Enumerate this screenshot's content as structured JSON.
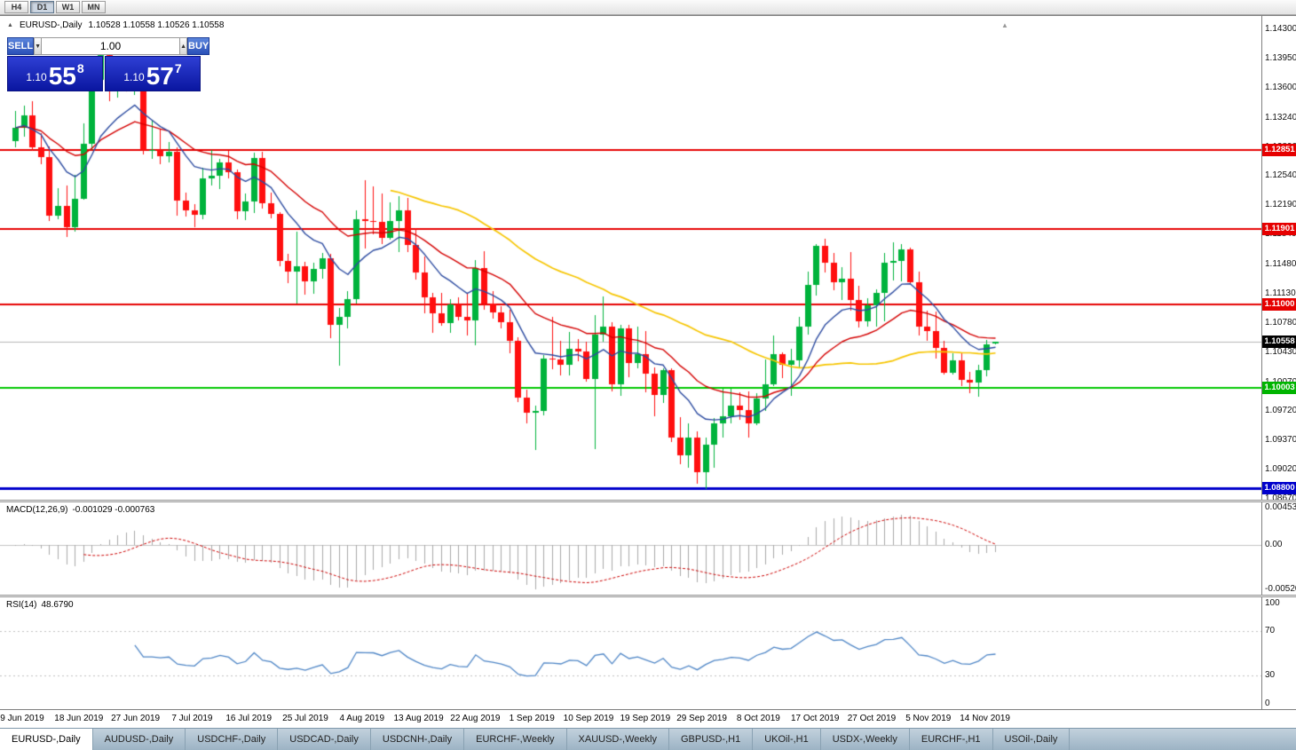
{
  "toolbar": {
    "timeframes": [
      {
        "label": "H4",
        "active": false
      },
      {
        "label": "D1",
        "active": true
      },
      {
        "label": "W1",
        "active": false
      },
      {
        "label": "MN",
        "active": false
      }
    ]
  },
  "icons": {
    "collapse": "▲",
    "volume_down": "▼",
    "volume_up": "▲",
    "shift_marker": "▲"
  },
  "chart": {
    "title_symbol": "EURUSD-,Daily",
    "title_ohlc": "1.10528 1.10558 1.10526 1.10558"
  },
  "trade_panel": {
    "sell_label": "SELL",
    "buy_label": "BUY",
    "volume": "1.00",
    "sell_price": {
      "prefix": "1.10",
      "big": "55",
      "sup": "8"
    },
    "buy_price": {
      "prefix": "1.10",
      "big": "57",
      "sup": "7"
    }
  },
  "price_axis": {
    "ticks": [
      "1.14300",
      "1.13950",
      "1.13600",
      "1.13240",
      "1.12890",
      "1.12540",
      "1.12190",
      "1.11840",
      "1.11480",
      "1.11130",
      "1.10780",
      "1.10430",
      "1.10070",
      "1.09720",
      "1.09370",
      "1.09020",
      "1.08670"
    ],
    "tags": [
      {
        "label": "1.12851",
        "color": "#e60000"
      },
      {
        "label": "1.11901",
        "color": "#e60000"
      },
      {
        "label": "1.11000",
        "color": "#e60000"
      },
      {
        "label": "1.10558",
        "color": "#000000"
      },
      {
        "label": "1.10003",
        "color": "#00b400"
      },
      {
        "label": "1.08800",
        "color": "#0000cc"
      }
    ]
  },
  "levels": [
    {
      "price": 1.12851,
      "color": "#e60000",
      "width": 2
    },
    {
      "price": 1.11901,
      "color": "#e60000",
      "width": 2
    },
    {
      "price": 1.11,
      "color": "#e60000",
      "width": 2
    },
    {
      "price": 1.10003,
      "color": "#00c800",
      "width": 2
    },
    {
      "price": 1.088,
      "color": "#0000cc",
      "width": 3
    }
  ],
  "current_price": {
    "value": 1.10558,
    "label": "1.10558"
  },
  "macd_panel": {
    "name": "MACD(12,26,9)",
    "values": "-0.001029 -0.000763",
    "axis": [
      {
        "label": "0.004536",
        "value": 0.004536
      },
      {
        "label": "0.00",
        "value": 0
      },
      {
        "label": "-0.00520",
        "value": -0.0052
      }
    ]
  },
  "rsi_panel": {
    "name": "RSI(14)",
    "value": "48.6790",
    "axis": [
      {
        "label": "100",
        "value": 100
      },
      {
        "label": "70",
        "value": 70
      },
      {
        "label": "30",
        "value": 30
      },
      {
        "label": "0",
        "value": 0
      }
    ]
  },
  "date_axis": [
    "9 Jun 2019",
    "18 Jun 2019",
    "27 Jun 2019",
    "7 Jul 2019",
    "16 Jul 2019",
    "25 Jul 2019",
    "4 Aug 2019",
    "13 Aug 2019",
    "22 Aug 2019",
    "1 Sep 2019",
    "10 Sep 2019",
    "19 Sep 2019",
    "29 Sep 2019",
    "8 Oct 2019",
    "17 Oct 2019",
    "27 Oct 2019",
    "5 Nov 2019",
    "14 Nov 2019"
  ],
  "tabs": [
    {
      "label": "EURUSD-,Daily",
      "active": true
    },
    {
      "label": "AUDUSD-,Daily",
      "active": false
    },
    {
      "label": "USDCHF-,Daily",
      "active": false
    },
    {
      "label": "USDCAD-,Daily",
      "active": false
    },
    {
      "label": "USDCNH-,Daily",
      "active": false
    },
    {
      "label": "EURCHF-,Weekly",
      "active": false
    },
    {
      "label": "XAUUSD-,Weekly",
      "active": false
    },
    {
      "label": "GBPUSD-,H1",
      "active": false
    },
    {
      "label": "UKOil-,H1",
      "active": false
    },
    {
      "label": "USDX-,Weekly",
      "active": false
    },
    {
      "label": "EURCHF-,H1",
      "active": false
    },
    {
      "label": "USOil-,Daily",
      "active": false
    }
  ],
  "colors": {
    "bull": "#00b33c",
    "bear": "#ff0f0f",
    "ma_fast": "#2c4ba0",
    "ma_mid": "#d40000",
    "ma_slow": "#f6c500",
    "macd_hist": "#a8a8a8",
    "macd_signal": "#cc0000",
    "rsi": "#4f86c6",
    "level_red": "#e60000",
    "level_green": "#00c800",
    "level_blue": "#0000cc",
    "current_price_line": "#b6b6b6"
  },
  "chart_data": {
    "type": "candlestick",
    "symbol": "EURUSD-",
    "timeframe": "Daily",
    "price_range": [
      1.0866,
      1.1446
    ],
    "last_price": 1.10558,
    "horizontal_levels": {
      "resistance": [
        1.12851,
        1.11901,
        1.11
      ],
      "support": [
        1.10003
      ],
      "major_support": [
        1.088
      ]
    },
    "moving_averages": [
      {
        "color_key": "ma_fast",
        "period": 10,
        "method": "ema"
      },
      {
        "color_key": "ma_mid",
        "period": 22,
        "method": "ema"
      },
      {
        "color_key": "ma_slow",
        "period": 45,
        "method": "sma"
      }
    ],
    "macd_params": [
      12,
      26,
      9
    ],
    "rsi_period": 14,
    "candles": [
      [
        1.1296,
        1.1332,
        1.1289,
        1.1312
      ],
      [
        1.1312,
        1.1338,
        1.1301,
        1.1327
      ],
      [
        1.1327,
        1.1344,
        1.1284,
        1.1288
      ],
      [
        1.1288,
        1.1306,
        1.1268,
        1.1277
      ],
      [
        1.1277,
        1.129,
        1.12,
        1.1207
      ],
      [
        1.1207,
        1.124,
        1.1202,
        1.1218
      ],
      [
        1.1218,
        1.1243,
        1.1181,
        1.1193
      ],
      [
        1.1193,
        1.1255,
        1.1187,
        1.1227
      ],
      [
        1.1227,
        1.1317,
        1.1226,
        1.1293
      ],
      [
        1.1293,
        1.1378,
        1.1285,
        1.1369
      ],
      [
        1.1369,
        1.1412,
        1.1364,
        1.1399
      ],
      [
        1.1399,
        1.1403,
        1.1344,
        1.1366
      ],
      [
        1.1366,
        1.1391,
        1.1348,
        1.137
      ],
      [
        1.137,
        1.1388,
        1.1356,
        1.1367
      ],
      [
        1.1367,
        1.1391,
        1.1351,
        1.1373
      ],
      [
        1.1373,
        1.1375,
        1.128,
        1.1285
      ],
      [
        1.1285,
        1.1322,
        1.1275,
        1.1285
      ],
      [
        1.1285,
        1.131,
        1.1268,
        1.1278
      ],
      [
        1.1278,
        1.1295,
        1.127,
        1.1283
      ],
      [
        1.1283,
        1.1288,
        1.1207,
        1.1225
      ],
      [
        1.1225,
        1.1234,
        1.1206,
        1.1213
      ],
      [
        1.1213,
        1.122,
        1.1193,
        1.1208
      ],
      [
        1.1208,
        1.1264,
        1.1202,
        1.1251
      ],
      [
        1.1251,
        1.1285,
        1.1243,
        1.1254
      ],
      [
        1.1254,
        1.1275,
        1.1239,
        1.127
      ],
      [
        1.127,
        1.1284,
        1.1251,
        1.1259
      ],
      [
        1.1259,
        1.1262,
        1.1202,
        1.1212
      ],
      [
        1.1212,
        1.1233,
        1.1201,
        1.1224
      ],
      [
        1.1224,
        1.1282,
        1.121,
        1.1276
      ],
      [
        1.1276,
        1.1283,
        1.1215,
        1.1221
      ],
      [
        1.1221,
        1.1234,
        1.1203,
        1.1209
      ],
      [
        1.1209,
        1.1211,
        1.1146,
        1.1152
      ],
      [
        1.1152,
        1.1161,
        1.1126,
        1.114
      ],
      [
        1.114,
        1.1187,
        1.1101,
        1.1146
      ],
      [
        1.1146,
        1.1151,
        1.1112,
        1.1128
      ],
      [
        1.1128,
        1.115,
        1.1113,
        1.1143
      ],
      [
        1.1143,
        1.1162,
        1.1131,
        1.1155
      ],
      [
        1.1155,
        1.1161,
        1.106,
        1.1076
      ],
      [
        1.1076,
        1.1096,
        1.1027,
        1.1085
      ],
      [
        1.1085,
        1.1116,
        1.1071,
        1.1106
      ],
      [
        1.1106,
        1.1213,
        1.1101,
        1.1202
      ],
      [
        1.1202,
        1.1249,
        1.1167,
        1.12
      ],
      [
        1.12,
        1.1242,
        1.1184,
        1.1199
      ],
      [
        1.1199,
        1.1233,
        1.1172,
        1.118
      ],
      [
        1.118,
        1.1223,
        1.1178,
        1.12
      ],
      [
        1.12,
        1.123,
        1.1163,
        1.1213
      ],
      [
        1.1213,
        1.1228,
        1.1163,
        1.1171
      ],
      [
        1.1171,
        1.1192,
        1.113,
        1.1138
      ],
      [
        1.1138,
        1.1158,
        1.109,
        1.1109
      ],
      [
        1.1109,
        1.1114,
        1.1066,
        1.109
      ],
      [
        1.109,
        1.1114,
        1.1075,
        1.1078
      ],
      [
        1.1078,
        1.1107,
        1.1066,
        1.11
      ],
      [
        1.11,
        1.1109,
        1.1081,
        1.1085
      ],
      [
        1.1085,
        1.1113,
        1.1063,
        1.1081
      ],
      [
        1.1081,
        1.1153,
        1.1051,
        1.1144
      ],
      [
        1.1144,
        1.1164,
        1.1094,
        1.1101
      ],
      [
        1.1101,
        1.1116,
        1.1083,
        1.1091
      ],
      [
        1.1091,
        1.1098,
        1.1071,
        1.1079
      ],
      [
        1.1079,
        1.1094,
        1.1042,
        1.1057
      ],
      [
        1.1057,
        1.1061,
        1.0983,
        1.0988
      ],
      [
        1.0988,
        1.0998,
        1.0958,
        1.097
      ],
      [
        1.097,
        1.0979,
        1.0926,
        1.0972
      ],
      [
        1.0972,
        1.1039,
        1.0967,
        1.1035
      ],
      [
        1.1035,
        1.1085,
        1.1022,
        1.1034
      ],
      [
        1.1034,
        1.1056,
        1.1015,
        1.1028
      ],
      [
        1.1028,
        1.1067,
        1.1015,
        1.1047
      ],
      [
        1.1047,
        1.1059,
        1.1032,
        1.1044
      ],
      [
        1.1044,
        1.1055,
        1.1008,
        1.1011
      ],
      [
        1.1011,
        1.1087,
        1.0927,
        1.1064
      ],
      [
        1.1064,
        1.111,
        1.1055,
        1.1073
      ],
      [
        1.1073,
        1.1079,
        1.0996,
        1.1004
      ],
      [
        1.1004,
        1.1076,
        1.099,
        1.1071
      ],
      [
        1.1071,
        1.1076,
        1.1013,
        1.103
      ],
      [
        1.103,
        1.1074,
        1.1023,
        1.1041
      ],
      [
        1.1041,
        1.1068,
        1.0995,
        1.1017
      ],
      [
        1.1017,
        1.1025,
        1.0966,
        1.0992
      ],
      [
        1.0992,
        1.1024,
        1.0982,
        1.1021
      ],
      [
        1.1021,
        1.1024,
        1.0935,
        1.0941
      ],
      [
        1.0941,
        1.0965,
        1.0909,
        1.0919
      ],
      [
        1.0919,
        1.0958,
        1.0904,
        1.094
      ],
      [
        1.094,
        1.0948,
        1.0885,
        1.0899
      ],
      [
        1.0899,
        1.094,
        1.0879,
        1.0932
      ],
      [
        1.0932,
        1.0964,
        1.0904,
        1.0958
      ],
      [
        1.0958,
        1.0999,
        1.0941,
        1.0966
      ],
      [
        1.0966,
        1.0999,
        1.0957,
        1.0979
      ],
      [
        1.0979,
        1.0995,
        1.0962,
        1.0973
      ],
      [
        1.0973,
        1.0996,
        1.0941,
        1.0957
      ],
      [
        1.0957,
        1.0994,
        1.0955,
        1.0987
      ],
      [
        1.0987,
        1.1034,
        1.0972,
        1.1004
      ],
      [
        1.1004,
        1.1063,
        1.1002,
        1.104
      ],
      [
        1.104,
        1.1043,
        1.1012,
        1.1028
      ],
      [
        1.1028,
        1.1047,
        1.0991,
        1.1033
      ],
      [
        1.1033,
        1.1085,
        1.1023,
        1.1073
      ],
      [
        1.1073,
        1.114,
        1.1064,
        1.1124
      ],
      [
        1.1124,
        1.1172,
        1.1111,
        1.117
      ],
      [
        1.117,
        1.1179,
        1.1138,
        1.115
      ],
      [
        1.115,
        1.1162,
        1.1117,
        1.1127
      ],
      [
        1.1127,
        1.1145,
        1.1105,
        1.1131
      ],
      [
        1.1131,
        1.1163,
        1.1093,
        1.1105
      ],
      [
        1.1105,
        1.1122,
        1.1072,
        1.108
      ],
      [
        1.108,
        1.1108,
        1.1073,
        1.1099
      ],
      [
        1.1099,
        1.1118,
        1.1073,
        1.1114
      ],
      [
        1.1114,
        1.1162,
        1.108,
        1.115
      ],
      [
        1.115,
        1.1175,
        1.1129,
        1.1152
      ],
      [
        1.1152,
        1.1172,
        1.1128,
        1.1166
      ],
      [
        1.1166,
        1.1168,
        1.1125,
        1.1127
      ],
      [
        1.1127,
        1.114,
        1.1063,
        1.1074
      ],
      [
        1.1074,
        1.1093,
        1.1057,
        1.1068
      ],
      [
        1.1068,
        1.1092,
        1.1035,
        1.1048
      ],
      [
        1.1048,
        1.1057,
        1.1016,
        1.1018
      ],
      [
        1.1018,
        1.1042,
        1.1016,
        1.1033
      ],
      [
        1.1033,
        1.1043,
        1.1002,
        1.101
      ],
      [
        1.101,
        1.1019,
        1.0994,
        1.1007
      ],
      [
        1.1007,
        1.1028,
        1.0989,
        1.1021
      ],
      [
        1.1021,
        1.1058,
        1.1014,
        1.1052
      ],
      [
        1.10528,
        1.10558,
        1.10526,
        1.10558
      ]
    ]
  }
}
